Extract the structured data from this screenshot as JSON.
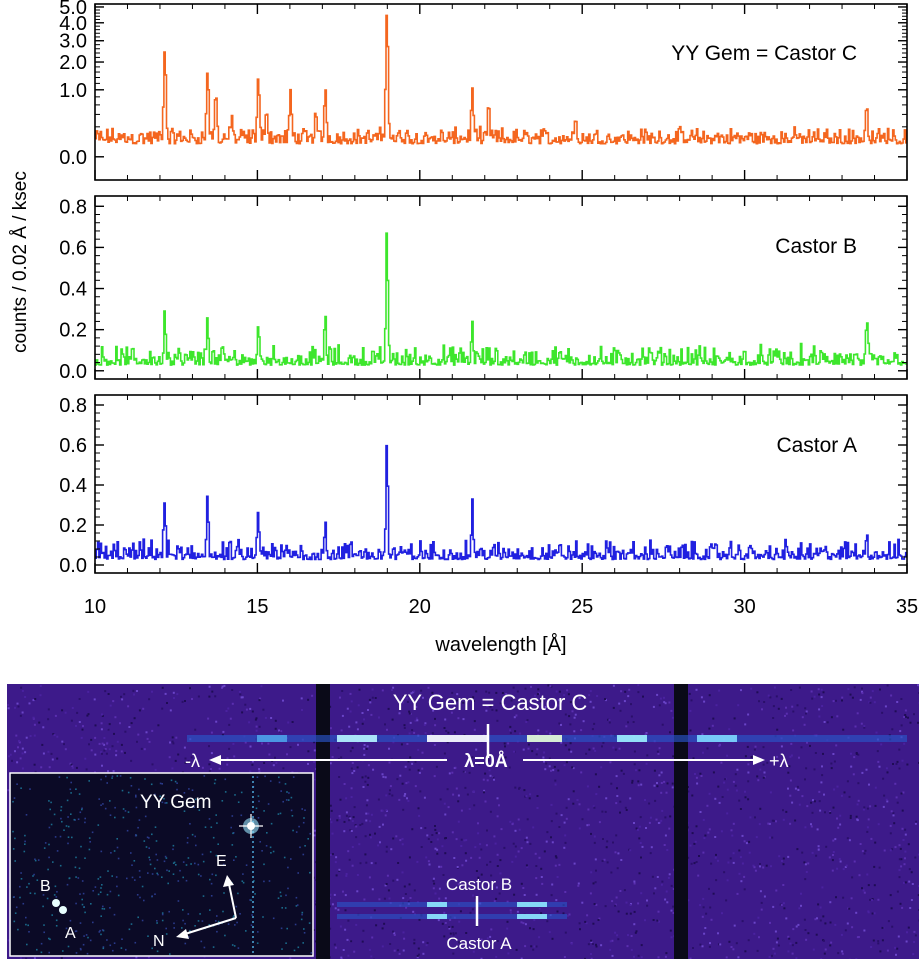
{
  "chart_data": {
    "type": "line",
    "x_range": [
      10,
      35
    ],
    "x_ticks": [
      10,
      15,
      20,
      25,
      30,
      35
    ],
    "xlabel": "wavelength [Å]",
    "ylabel": "counts / 0.02 Å / ksec",
    "panels": [
      {
        "name": "YY Gem = Castor C",
        "color": "#f4661f",
        "y_scale": "sqrt",
        "y_range": [
          -0.12,
          5.2
        ],
        "y_ticks": [
          0.0,
          1.0,
          2.0,
          3.0,
          4.0,
          5.0
        ],
        "y_tick_labels": [
          "0.0",
          "1.0",
          "2.0",
          "3.0",
          "4.0",
          "5.0"
        ],
        "baseline": 0.05,
        "noise": 0.08,
        "lines": [
          {
            "wl": 12.13,
            "peak": 2.5
          },
          {
            "wl": 13.45,
            "peak": 1.6
          },
          {
            "wl": 13.7,
            "peak": 0.85
          },
          {
            "wl": 14.2,
            "peak": 0.3
          },
          {
            "wl": 15.01,
            "peak": 1.35
          },
          {
            "wl": 15.26,
            "peak": 0.45
          },
          {
            "wl": 16.0,
            "peak": 0.85
          },
          {
            "wl": 16.78,
            "peak": 0.4
          },
          {
            "wl": 17.07,
            "peak": 0.95
          },
          {
            "wl": 18.97,
            "peak": 4.7
          },
          {
            "wl": 21.6,
            "peak": 0.95
          },
          {
            "wl": 22.1,
            "peak": 0.5
          },
          {
            "wl": 24.78,
            "peak": 0.3
          },
          {
            "wl": 33.74,
            "peak": 0.55
          }
        ]
      },
      {
        "name": "Castor B",
        "color": "#3de62c",
        "y_scale": "linear",
        "y_range": [
          -0.04,
          0.85
        ],
        "y_ticks": [
          0.0,
          0.2,
          0.4,
          0.6,
          0.8
        ],
        "y_tick_labels": [
          "0.0",
          "0.2",
          "0.4",
          "0.6",
          "0.8"
        ],
        "baseline": 0.035,
        "noise": 0.05,
        "lines": [
          {
            "wl": 12.13,
            "peak": 0.25
          },
          {
            "wl": 13.45,
            "peak": 0.23
          },
          {
            "wl": 15.01,
            "peak": 0.18
          },
          {
            "wl": 17.07,
            "peak": 0.2
          },
          {
            "wl": 18.97,
            "peak": 0.68
          },
          {
            "wl": 21.6,
            "peak": 0.18
          },
          {
            "wl": 33.74,
            "peak": 0.17
          }
        ]
      },
      {
        "name": "Castor A",
        "color": "#2020e0",
        "y_scale": "linear",
        "y_range": [
          -0.04,
          0.85
        ],
        "y_ticks": [
          0.0,
          0.2,
          0.4,
          0.6,
          0.8
        ],
        "y_tick_labels": [
          "0.0",
          "0.2",
          "0.4",
          "0.6",
          "0.8"
        ],
        "baseline": 0.035,
        "noise": 0.05,
        "lines": [
          {
            "wl": 12.13,
            "peak": 0.27
          },
          {
            "wl": 13.45,
            "peak": 0.31
          },
          {
            "wl": 15.01,
            "peak": 0.19
          },
          {
            "wl": 17.07,
            "peak": 0.18
          },
          {
            "wl": 18.97,
            "peak": 0.6
          },
          {
            "wl": 21.6,
            "peak": 0.27
          },
          {
            "wl": 33.74,
            "peak": 0.12
          }
        ]
      }
    ]
  },
  "image_panel": {
    "title": "YY Gem = Castor C",
    "minus_label": "-λ",
    "zero_label": "λ=0Å",
    "plus_label": "+λ",
    "castor_b_label": "Castor B",
    "castor_a_label": "Castor A",
    "inset": {
      "yy_gem_label": "YY Gem",
      "b_label": "B",
      "a_label": "A",
      "north_label": "N",
      "east_label": "E"
    },
    "colors": {
      "background": "#3d1a8a",
      "inset_background": "#0b0a26",
      "chip_gap": "#0a0a18",
      "label": "#ffffff"
    }
  }
}
